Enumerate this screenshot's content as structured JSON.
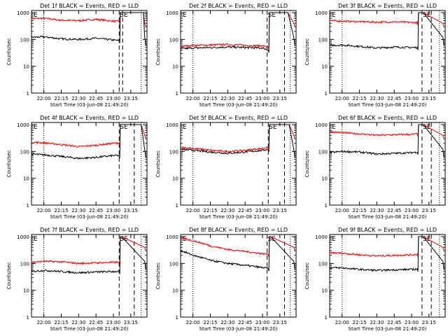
{
  "colors": {
    "events": "#000000",
    "lld": "#ff0000",
    "axis": "#000000",
    "background": "#ffffff"
  },
  "common": {
    "ylabel": "Counts/sec",
    "xlabel": "Start Time (03-Jun-08 21:49:20)",
    "yticks": [
      "1",
      "10",
      "100",
      "1000"
    ],
    "xticks": [
      "22:00",
      "22:15",
      "22:30",
      "22:45",
      "23:00",
      "23:15"
    ],
    "marker_labels": [
      "E",
      "SE"
    ]
  },
  "chart_data": [
    {
      "type": "line",
      "title": "Det 1f BLACK = Events, RED = LLD",
      "xlabel": "Start Time (03-Jun-08 21:49:20)",
      "ylabel": "Counts/sec",
      "yscale": "log",
      "ylim": [
        1,
        1000
      ],
      "x": [
        "21:49",
        "22:00",
        "22:15",
        "22:30",
        "22:45",
        "23:00",
        "23:05"
      ],
      "series": [
        {
          "values": [
            120,
            125,
            105,
            100,
            110,
            95,
            90
          ]
        },
        {
          "values": [
            600,
            610,
            520,
            500,
            560,
            480,
            470
          ]
        }
      ]
    },
    {
      "type": "line",
      "title": "Det 2f BLACK = Events, RED = LLD",
      "xlabel": "Start Time (03-Jun-08 21:49:20)",
      "ylabel": "Counts/sec",
      "yscale": "log",
      "ylim": [
        1,
        1000
      ],
      "x": [
        "21:49",
        "22:00",
        "22:15",
        "22:30",
        "22:45",
        "23:00",
        "23:05"
      ],
      "series": [
        {
          "values": [
            45,
            48,
            50,
            52,
            50,
            48,
            40
          ]
        },
        {
          "values": [
            55,
            60,
            62,
            65,
            60,
            58,
            50
          ]
        }
      ]
    },
    {
      "type": "line",
      "title": "Det 3f BLACK = Events, RED = LLD",
      "xlabel": "Start Time (03-Jun-08 21:49:20)",
      "ylabel": "Counts/sec",
      "yscale": "log",
      "ylim": [
        1,
        1000
      ],
      "x": [
        "21:49",
        "22:00",
        "22:15",
        "22:30",
        "22:45",
        "23:00",
        "23:05"
      ],
      "series": [
        {
          "values": [
            60,
            62,
            55,
            48,
            52,
            50,
            50
          ]
        },
        {
          "values": [
            500,
            480,
            460,
            440,
            450,
            430,
            420
          ]
        }
      ]
    },
    {
      "type": "line",
      "title": "Det 4f BLACK = Events, RED = LLD",
      "xlabel": "Start Time (03-Jun-08 21:49:20)",
      "ylabel": "Counts/sec",
      "yscale": "log",
      "ylim": [
        1,
        1000
      ],
      "x": [
        "21:49",
        "22:00",
        "22:15",
        "22:30",
        "22:45",
        "23:00",
        "23:05"
      ],
      "series": [
        {
          "values": [
            80,
            75,
            65,
            55,
            60,
            70,
            70
          ]
        },
        {
          "values": [
            220,
            210,
            180,
            150,
            170,
            200,
            210
          ]
        }
      ]
    },
    {
      "type": "line",
      "title": "Det 5f BLACK = Events, RED = LLD",
      "xlabel": "Start Time (03-Jun-08 21:49:20)",
      "ylabel": "Counts/sec",
      "yscale": "log",
      "ylim": [
        1,
        1000
      ],
      "x": [
        "21:49",
        "22:00",
        "22:15",
        "22:30",
        "22:45",
        "23:00",
        "23:05"
      ],
      "series": [
        {
          "values": [
            120,
            110,
            95,
            85,
            95,
            110,
            120
          ]
        },
        {
          "values": [
            140,
            130,
            110,
            100,
            110,
            130,
            140
          ]
        }
      ]
    },
    {
      "type": "line",
      "title": "Det 6f BLACK = Events, RED = LLD",
      "xlabel": "Start Time (03-Jun-08 21:49:20)",
      "ylabel": "Counts/sec",
      "yscale": "log",
      "ylim": [
        1,
        1000
      ],
      "x": [
        "21:49",
        "22:00",
        "22:15",
        "22:30",
        "22:45",
        "23:00",
        "23:05"
      ],
      "series": [
        {
          "values": [
            90,
            100,
            95,
            80,
            85,
            90,
            95
          ]
        },
        {
          "values": [
            550,
            500,
            450,
            400,
            420,
            430,
            450
          ]
        }
      ]
    },
    {
      "type": "line",
      "title": "Det 7f BLACK = Events, RED = LLD",
      "xlabel": "Start Time (03-Jun-08 21:49:20)",
      "ylabel": "Counts/sec",
      "yscale": "log",
      "ylim": [
        1,
        1000
      ],
      "x": [
        "21:49",
        "22:00",
        "22:15",
        "22:30",
        "22:45",
        "23:00",
        "23:05"
      ],
      "series": [
        {
          "values": [
            50,
            55,
            50,
            45,
            48,
            50,
            50
          ]
        },
        {
          "values": [
            110,
            120,
            115,
            100,
            105,
            110,
            110
          ]
        }
      ]
    },
    {
      "type": "line",
      "title": "Det 8f BLACK = Events, RED = LLD",
      "xlabel": "Start Time (03-Jun-08 21:49:20)",
      "ylabel": "Counts/sec",
      "yscale": "log",
      "ylim": [
        1,
        1000
      ],
      "x": [
        "21:49",
        "22:00",
        "22:15",
        "22:30",
        "22:45",
        "23:00",
        "23:05"
      ],
      "series": [
        {
          "values": [
            300,
            200,
            130,
            100,
            85,
            70,
            65
          ]
        },
        {
          "values": [
            900,
            700,
            450,
            330,
            280,
            230,
            220
          ]
        }
      ]
    },
    {
      "type": "line",
      "title": "Det 9f BLACK = Events, RED = LLD",
      "xlabel": "Start Time (03-Jun-08 21:49:20)",
      "ylabel": "Counts/sec",
      "yscale": "log",
      "ylim": [
        1,
        1000
      ],
      "x": [
        "21:49",
        "22:00",
        "22:15",
        "22:30",
        "22:45",
        "23:00",
        "23:05"
      ],
      "series": [
        {
          "values": [
            70,
            68,
            60,
            55,
            58,
            60,
            62
          ]
        },
        {
          "values": [
            250,
            240,
            210,
            190,
            200,
            210,
            220
          ]
        }
      ]
    }
  ]
}
